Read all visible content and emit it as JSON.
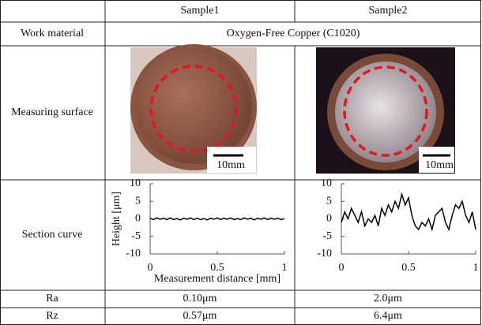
{
  "header": {
    "columns": [
      "Sample1",
      "Sample2"
    ]
  },
  "work_material": {
    "label": "Work material",
    "value": "Oxygen-Free Copper (C1020)"
  },
  "measuring_surface": {
    "label": "Measuring surface",
    "scale_bars": [
      "10mm",
      "10mm"
    ]
  },
  "section_curve": {
    "label": "Section curve",
    "charts": [
      {
        "type": "line",
        "color": "#000",
        "x_label": "Measurement distance [mm]",
        "y_label": "Height [μm]",
        "xlim": [
          0,
          1
        ],
        "ylim": [
          -10,
          10
        ],
        "xticks": [
          0,
          0.5,
          1
        ],
        "yticks": [
          10,
          5,
          0,
          -5,
          -10
        ],
        "x": [
          0,
          0.025,
          0.05,
          0.075,
          0.1,
          0.125,
          0.15,
          0.175,
          0.2,
          0.225,
          0.25,
          0.275,
          0.3,
          0.325,
          0.35,
          0.375,
          0.4,
          0.425,
          0.45,
          0.475,
          0.5,
          0.525,
          0.55,
          0.575,
          0.6,
          0.625,
          0.65,
          0.675,
          0.7,
          0.725,
          0.75,
          0.775,
          0.8,
          0.825,
          0.85,
          0.875,
          0.9,
          0.925,
          0.95,
          0.975,
          1
        ],
        "values": [
          0.2,
          -0.2,
          0.3,
          -0.1,
          0.2,
          -0.2,
          0.3,
          -0.2,
          0.1,
          -0.3,
          0.2,
          -0.1,
          0.3,
          -0.2,
          0.2,
          -0.2,
          0.1,
          -0.3,
          0.2,
          -0.1,
          0.3,
          -0.2,
          0.2,
          -0.1,
          0.3,
          -0.2,
          0.1,
          -0.2,
          0.3,
          -0.1,
          0.2,
          -0.3,
          0.2,
          -0.1,
          0.3,
          -0.2,
          0.2,
          -0.1,
          0.2,
          -0.2,
          0.1
        ]
      },
      {
        "type": "line",
        "color": "#000",
        "xlim": [
          0,
          1
        ],
        "ylim": [
          -10,
          10
        ],
        "xticks": [
          0,
          0.5,
          1
        ],
        "yticks": [
          10,
          5,
          0,
          -5,
          -10
        ],
        "x": [
          0,
          0.025,
          0.05,
          0.075,
          0.1,
          0.125,
          0.15,
          0.175,
          0.2,
          0.225,
          0.25,
          0.275,
          0.3,
          0.325,
          0.35,
          0.375,
          0.4,
          0.425,
          0.45,
          0.475,
          0.5,
          0.525,
          0.55,
          0.575,
          0.6,
          0.625,
          0.65,
          0.675,
          0.7,
          0.725,
          0.75,
          0.775,
          0.8,
          0.825,
          0.85,
          0.875,
          0.9,
          0.925,
          0.95,
          0.975,
          1
        ],
        "values": [
          -1,
          2,
          0,
          3,
          1,
          -1,
          2,
          -2,
          0,
          -1,
          1,
          -2,
          3,
          1,
          4,
          2,
          5,
          3,
          7,
          4,
          6,
          1,
          -2,
          -3,
          -1,
          -2,
          0,
          -3,
          1,
          2,
          3,
          -1,
          -3,
          1,
          4,
          3,
          5,
          1,
          -1,
          2,
          -3
        ]
      }
    ]
  },
  "ra": {
    "label": "Ra",
    "values": [
      "0.10μm",
      "2.0μm"
    ]
  },
  "rz": {
    "label": "Rz",
    "values": [
      "0.57μm",
      "6.4μm"
    ]
  }
}
